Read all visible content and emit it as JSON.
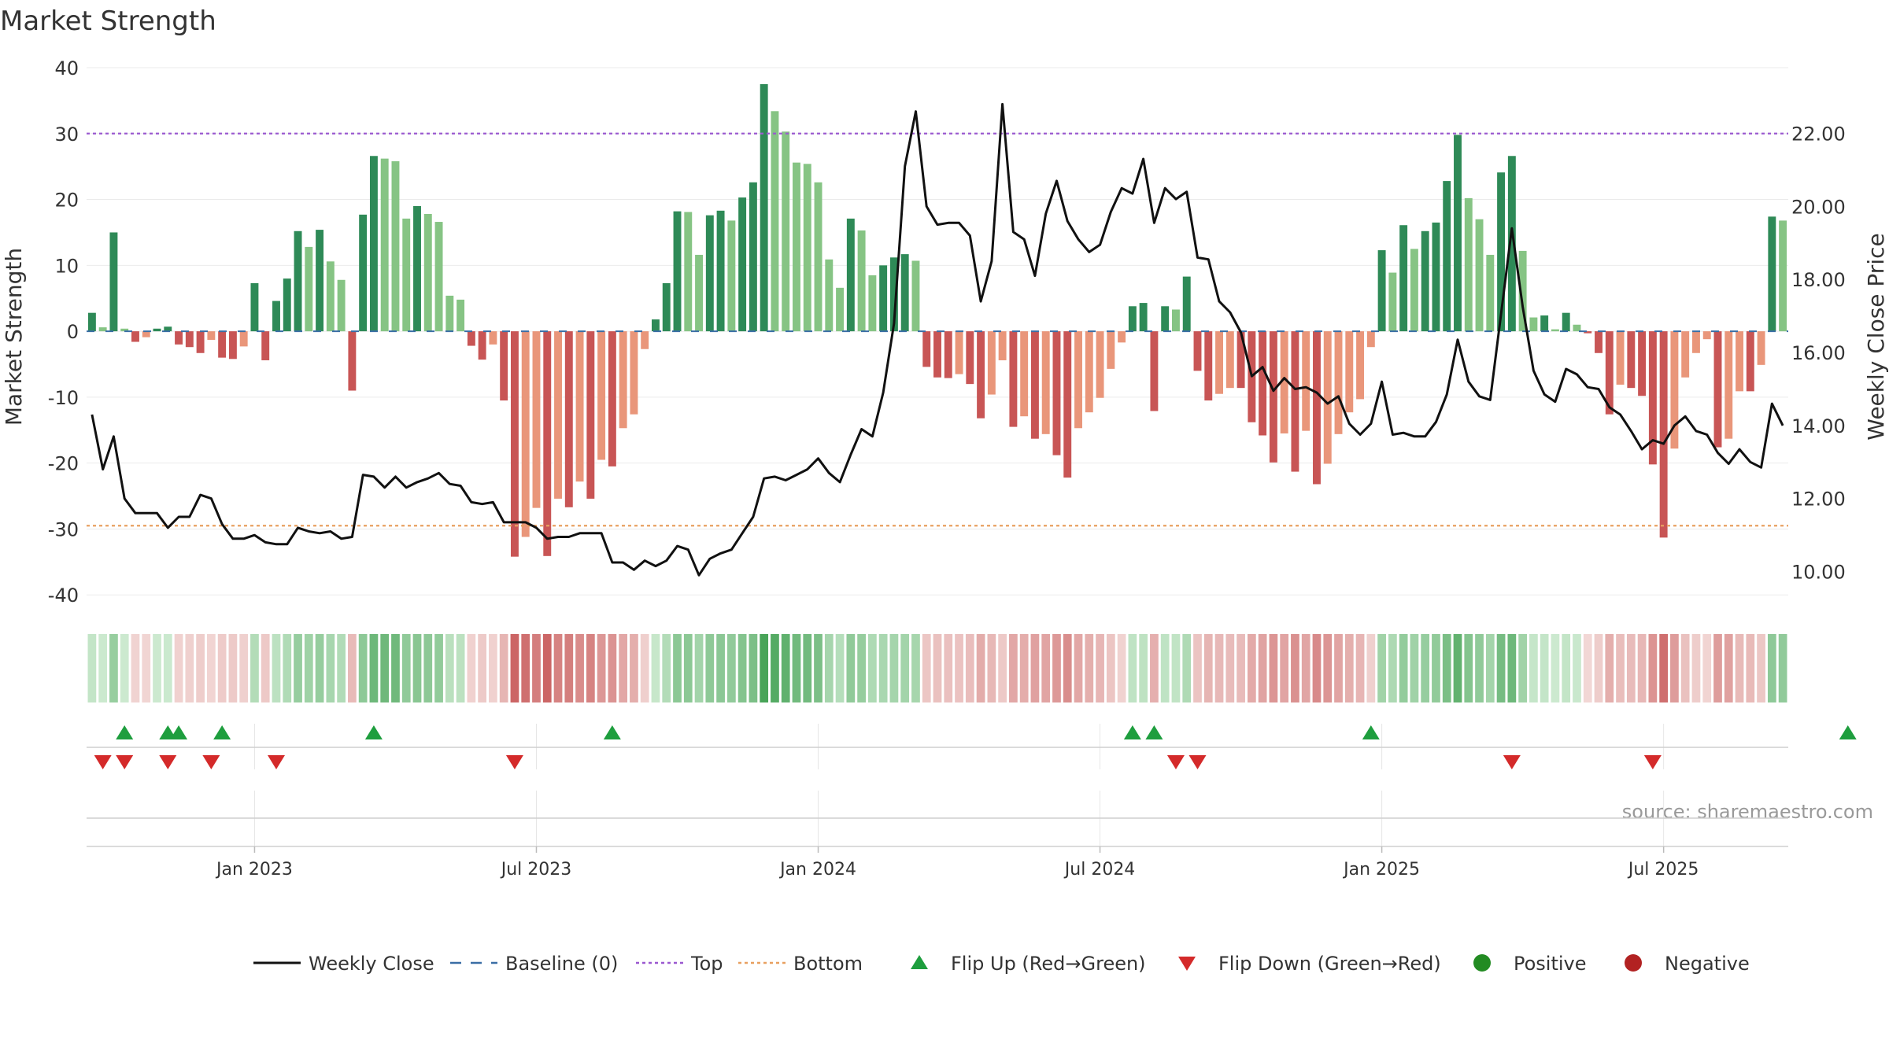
{
  "chart_data": {
    "type": "bar",
    "title": "Market Strength",
    "ylabel": "Market Strength",
    "y2label": "Weekly Close Price",
    "ylim": [
      -42,
      40
    ],
    "y2lim": [
      9.0,
      23.8
    ],
    "yticks": [
      40,
      30,
      20,
      10,
      0,
      -10,
      -20,
      -30,
      -40
    ],
    "y2ticks": [
      "22.00",
      "20.00",
      "18.00",
      "16.00",
      "14.00",
      "12.00",
      "10.00"
    ],
    "y2tick_values": [
      22,
      20,
      18,
      16,
      14,
      12,
      10
    ],
    "top_line": 30,
    "bottom_line": -29.5,
    "x_tick_labels": [
      "Jan 2023",
      "Jul 2023",
      "Jan 2024",
      "Jul 2024",
      "Jan 2025",
      "Jul 2025"
    ],
    "x_tick_weeks": [
      15,
      41,
      67,
      93,
      119,
      145
    ],
    "strength": [
      2.8,
      0.6,
      15,
      0.4,
      -1.6,
      -0.9,
      0.4,
      0.7,
      -2,
      -2.4,
      -3.3,
      -1.3,
      -4,
      -4.2,
      -2.3,
      7.3,
      -4.4,
      4.6,
      8,
      15.2,
      12.8,
      15.4,
      10.6,
      7.8,
      -9,
      17.7,
      26.6,
      26.2,
      25.8,
      17.1,
      19,
      17.8,
      16.6,
      5.4,
      4.8,
      -2.2,
      -4.3,
      -2,
      -10.5,
      -34.2,
      -31.2,
      -26.8,
      -34.1,
      -25.4,
      -26.7,
      -22.8,
      -25.4,
      -19.5,
      -20.5,
      -14.7,
      -12.6,
      -2.7,
      1.8,
      7.3,
      18.2,
      18.1,
      11.6,
      17.6,
      18.3,
      16.8,
      20.3,
      22.6,
      37.5,
      33.4,
      30.3,
      25.6,
      25.4,
      22.6,
      10.9,
      6.6,
      17.1,
      15.3,
      8.5,
      10,
      11.2,
      11.7,
      10.7,
      -5.4,
      -7,
      -7.1,
      -6.5,
      -8,
      -13.2,
      -9.6,
      -4.4,
      -14.5,
      -12.9,
      -16.3,
      -15.6,
      -18.8,
      -22.2,
      -14.7,
      -12.3,
      -10.1,
      -5.7,
      -1.7,
      3.8,
      4.3,
      -12.1,
      3.8,
      3.3,
      8.3,
      -6,
      -10.5,
      -9.5,
      -8.6,
      -8.6,
      -13.8,
      -15.8,
      -19.9,
      -15.5,
      -21.3,
      -15.1,
      -23.2,
      -20.1,
      -15.6,
      -12.3,
      -10.3,
      -2.4,
      12.3,
      8.9,
      16.1,
      12.5,
      15.2,
      16.5,
      22.8,
      29.8,
      20.2,
      17,
      11.6,
      24.1,
      26.6,
      12.2,
      2.1,
      2.4,
      0.3,
      2.8,
      1,
      -0.3,
      -3.3,
      -12.6,
      -8.1,
      -8.6,
      -9.8,
      -20.2,
      -31.3,
      -17.8,
      -7,
      -3.3,
      -1.2,
      -17.6,
      -16.3,
      -9.1,
      -9.1,
      -5.1,
      17.4,
      16.8
    ],
    "weekly_close": [
      14.3,
      12.8,
      13.7,
      12.0,
      11.6,
      11.6,
      11.6,
      11.2,
      11.5,
      11.5,
      12.1,
      12.0,
      11.3,
      10.9,
      10.9,
      11.0,
      10.8,
      10.75,
      10.75,
      11.2,
      11.1,
      11.05,
      11.1,
      10.9,
      10.95,
      12.65,
      12.6,
      12.3,
      12.6,
      12.3,
      12.45,
      12.55,
      12.7,
      12.4,
      12.35,
      11.9,
      11.85,
      11.9,
      11.35,
      11.35,
      11.35,
      11.2,
      10.9,
      10.95,
      10.95,
      11.05,
      11.05,
      11.05,
      10.25,
      10.25,
      10.05,
      10.3,
      10.15,
      10.3,
      10.7,
      10.6,
      9.9,
      10.35,
      10.5,
      10.6,
      11.05,
      11.5,
      12.55,
      12.6,
      12.5,
      12.65,
      12.8,
      13.1,
      12.7,
      12.45,
      13.2,
      13.9,
      13.7,
      14.9,
      16.8,
      21.1,
      22.6,
      20.0,
      19.5,
      19.55,
      19.55,
      19.2,
      17.4,
      18.5,
      22.8,
      19.3,
      19.1,
      18.1,
      19.8,
      20.7,
      19.6,
      19.1,
      18.75,
      18.95,
      19.85,
      20.5,
      20.35,
      21.3,
      19.55,
      20.5,
      20.2,
      20.4,
      18.6,
      18.55,
      17.4,
      17.1,
      16.55,
      15.35,
      15.6,
      14.95,
      15.3,
      15.0,
      15.05,
      14.9,
      14.6,
      14.8,
      14.05,
      13.75,
      14.05,
      15.2,
      13.75,
      13.8,
      13.7,
      13.7,
      14.1,
      14.85,
      16.35,
      15.2,
      14.8,
      14.7,
      17.05,
      19.4,
      17.25,
      15.5,
      14.85,
      14.65,
      15.55,
      15.4,
      15.05,
      15.0,
      14.5,
      14.3,
      13.85,
      13.35,
      13.6,
      13.5,
      14.0,
      14.25,
      13.85,
      13.75,
      13.25,
      12.95,
      13.35,
      13.0,
      12.85,
      14.6,
      14.0
    ],
    "flip_up_weeks": [
      3,
      7,
      8,
      12,
      26,
      48,
      96,
      98,
      118,
      162
    ],
    "flip_down_weeks": [
      1,
      3,
      7,
      11,
      17,
      39,
      100,
      102,
      131,
      144
    ],
    "colors": {
      "green_dark": "#2e8a57",
      "green_light": "#86c484",
      "red_dark": "#c85555",
      "red_light": "#e9967a",
      "close_line": "#111111",
      "baseline": "#3a6ea5",
      "top_line": "#9b59d0",
      "bottom_line": "#e8a060",
      "flip_up": "#1e9e3e",
      "flip_down": "#d42a2a",
      "positive": "#228b22",
      "negative": "#b22222"
    },
    "source": "source: sharemaestro.com",
    "legend": [
      {
        "label": "Weekly Close",
        "kind": "line"
      },
      {
        "label": "Baseline (0)",
        "kind": "dash"
      },
      {
        "label": "Top",
        "kind": "dot-purple"
      },
      {
        "label": "Bottom",
        "kind": "dot-orange"
      },
      {
        "label": "Flip Up (Red→Green)",
        "kind": "tri-up"
      },
      {
        "label": "Flip Down (Green→Red)",
        "kind": "tri-down"
      },
      {
        "label": "Positive",
        "kind": "circle-pos"
      },
      {
        "label": "Negative",
        "kind": "circle-neg"
      }
    ]
  }
}
